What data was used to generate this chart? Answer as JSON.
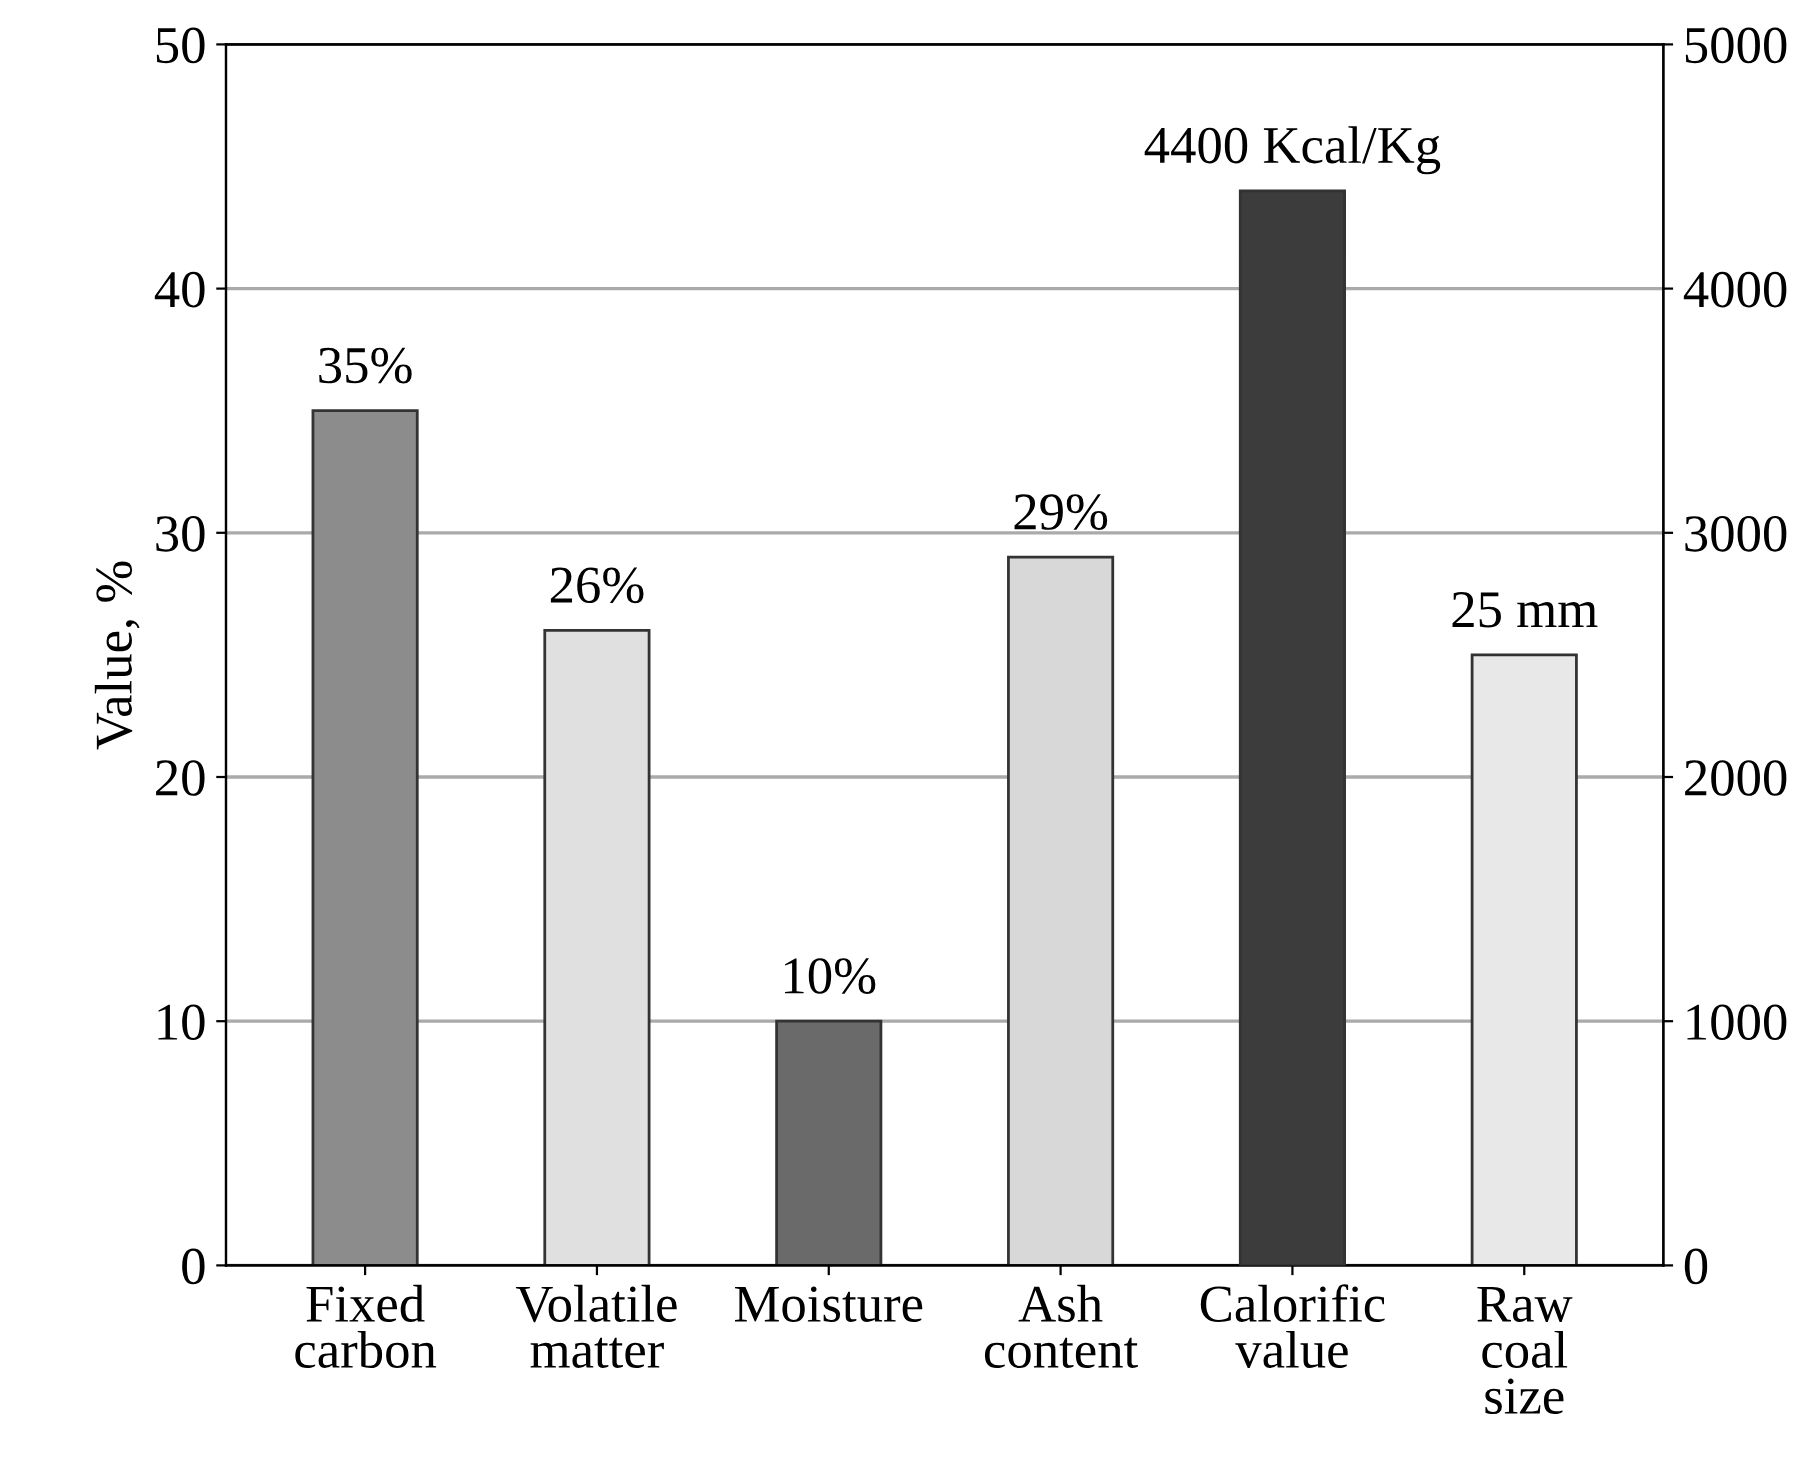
{
  "chart_data": {
    "type": "bar",
    "ylabel": "Value, %",
    "categories": [
      "Fixed\ncarbon",
      "Volatile\nmatter",
      "Moisture",
      "Ash\ncontent",
      "Calorific\nvalue",
      "Raw\ncoal\nsize"
    ],
    "series": [
      {
        "values": [
          35,
          26,
          10,
          29,
          null,
          25
        ],
        "colors": [
          "#8c8c8c",
          "#e0e0e0",
          "#6a6a6a",
          "#d8d8d8",
          null,
          "#e8e8e8"
        ],
        "value_labels": [
          "35%",
          "26%",
          "10%",
          "29%",
          null,
          "25 mm"
        ]
      },
      {
        "axis": "y2",
        "values": [
          null,
          null,
          null,
          null,
          4400,
          null
        ],
        "colors": [
          null,
          null,
          null,
          null,
          "#3c3c3c",
          null
        ],
        "value_labels": [
          null,
          null,
          null,
          null,
          "4400 Kcal/Kg",
          null
        ]
      }
    ],
    "ylim": [
      0,
      50
    ],
    "yticks": [
      0,
      10,
      20,
      30,
      40,
      50
    ],
    "y2lim": [
      0,
      5000
    ],
    "y2ticks": [
      0,
      1000,
      2000,
      3000,
      4000,
      5000
    ],
    "grid": "y"
  }
}
